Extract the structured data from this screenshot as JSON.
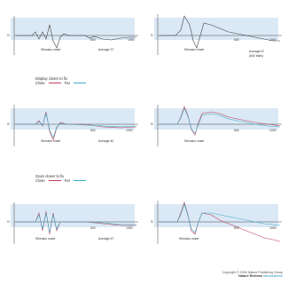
{
  "panels": [
    {
      "id": "a",
      "y_label": "S",
      "labels": [
        "Stimulus onset",
        "Average 37"
      ],
      "ticks": [
        "500",
        "1000"
      ]
    },
    {
      "id": "b",
      "y_label": "S",
      "labels": [
        "Stimulus onset",
        "Average 67",
        "(500 trials)"
      ],
      "ticks": [
        "500",
        "1000"
      ]
    },
    {
      "id": "c",
      "y_label": "S",
      "labels": [
        "Stimulus onset",
        "Average 40"
      ],
      "ticks": [
        "500",
        "1000"
      ]
    },
    {
      "id": "d",
      "y_label": "S",
      "labels": [
        "Stimulus onset"
      ],
      "ticks": [
        "500",
        "1000"
      ]
    },
    {
      "id": "e",
      "y_label": "S",
      "labels": [
        "Stimulus onset",
        "Average 67"
      ],
      "ticks": [
        "500",
        "1000"
      ]
    },
    {
      "id": "f",
      "y_label": "S",
      "labels": [
        "Stimulus onset"
      ],
      "ticks": [
        "500",
        "1000"
      ]
    }
  ],
  "legend1": {
    "title": "Display closer to fix",
    "close": "Close",
    "far": "Far"
  },
  "legend2": {
    "title": "Gaze closer to fix",
    "close": "Close",
    "far": "Far"
  },
  "copyright": {
    "line1": "Copyright © 2006 Nature Publishing Group",
    "journal": "Nature Reviews",
    "journal_sub": "Neuroscience"
  },
  "colors": {
    "background_band": "#dbe8f5",
    "trace": "#444444",
    "close_trace": "#c0405a",
    "far_trace": "#3bb0c9"
  }
}
